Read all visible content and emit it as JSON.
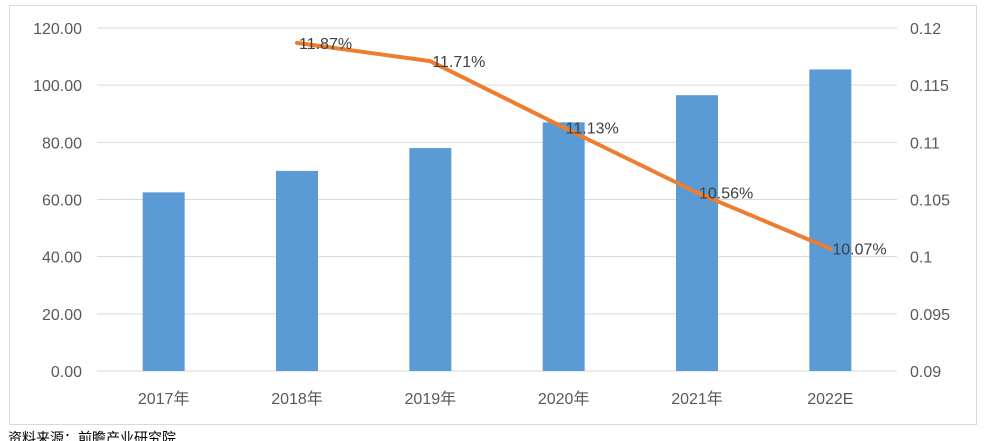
{
  "chart_data": {
    "type": "bar",
    "categories": [
      "2017年",
      "2018年",
      "2019年",
      "2020年",
      "2021年",
      "2022E"
    ],
    "series": [
      {
        "type": "bar",
        "axis": "left",
        "color": "#5b9bd5",
        "values": [
          62.5,
          70.0,
          78.0,
          87.0,
          96.5,
          105.5
        ]
      },
      {
        "type": "line",
        "axis": "right",
        "color": "#ed7d31",
        "values": [
          null,
          0.1187,
          0.1171,
          0.1113,
          0.1056,
          0.1007
        ],
        "data_labels": [
          "",
          "11.87%",
          "11.71%",
          "11.13%",
          "10.56%",
          "10.07%"
        ]
      }
    ],
    "y_left": {
      "ylim": [
        0,
        120
      ],
      "ticks": [
        0,
        20,
        40,
        60,
        80,
        100,
        120
      ],
      "tick_labels": [
        "0.00",
        "20.00",
        "40.00",
        "60.00",
        "80.00",
        "100.00",
        "120.00"
      ]
    },
    "y_right": {
      "ylim": [
        0.09,
        0.12
      ],
      "ticks": [
        0.09,
        0.095,
        0.1,
        0.105,
        0.11,
        0.115,
        0.12
      ],
      "tick_labels": [
        "0.09",
        "0.095",
        "0.1",
        "0.105",
        "0.11",
        "0.115",
        "0.12"
      ]
    },
    "grid": true,
    "gridline_color": "#d9d9d9",
    "legend": "none"
  },
  "source_note": "资料来源：前瞻产业研究院"
}
